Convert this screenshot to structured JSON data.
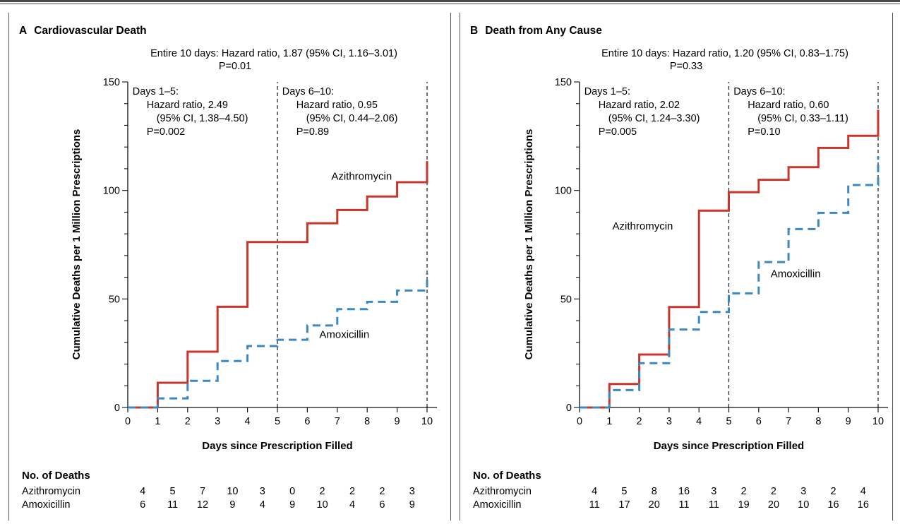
{
  "style": {
    "azithro_color": "#c8362b",
    "amox_color": "#3b88c4",
    "axis_color": "#111111"
  },
  "chart_data": [
    {
      "type": "line",
      "panel": "A",
      "title": "Cardiovascular Death",
      "overall_lines": [
        "Entire 10 days: Hazard ratio, 1.87 (95% CI, 1.16–3.01)",
        "P=0.01"
      ],
      "xlabel": "Days since Prescription Filled",
      "ylabel": "Cumulative Deaths per 1 Million Prescriptions",
      "xlim": [
        0,
        10
      ],
      "ylim": [
        0,
        150
      ],
      "xticks": [
        "0",
        "1",
        "2",
        "3",
        "4",
        "5",
        "6",
        "7",
        "8",
        "9",
        "10"
      ],
      "yticks": [
        "0",
        "50",
        "100",
        "150"
      ],
      "vlines": [
        5,
        10
      ],
      "annotations": [
        {
          "x": 0.3,
          "lines": [
            "Days 1–5:",
            "Hazard ratio, 2.49",
            "(95% CI, 1.38–4.50)",
            "P=0.002"
          ]
        },
        {
          "x": 5.3,
          "lines": [
            "Days 6–10:",
            "Hazard ratio, 0.95",
            "(95% CI, 0.44–2.06)",
            "P=0.89"
          ]
        }
      ],
      "series": [
        {
          "name": "Azithromycin",
          "style": "solid",
          "x": [
            0,
            1,
            2,
            3,
            4,
            5,
            6,
            7,
            8,
            9,
            10
          ],
          "y": [
            0,
            11.4,
            25.7,
            46.4,
            76.2,
            76.2,
            84.9,
            91.0,
            97.2,
            103.8,
            113.5
          ],
          "label_at": [
            6.8,
            105
          ]
        },
        {
          "name": "Amoxicillin",
          "style": "dashed",
          "x": [
            0,
            1,
            2,
            3,
            4,
            5,
            6,
            7,
            8,
            9,
            10
          ],
          "y": [
            0,
            4.2,
            12.3,
            21.4,
            28.3,
            31.2,
            37.8,
            45.3,
            48.7,
            53.9,
            61.8
          ],
          "label_at": [
            6.4,
            32
          ]
        }
      ],
      "deaths_table": {
        "header": "No. of Deaths",
        "rows": [
          {
            "name": "Azithromycin",
            "values": [
              "4",
              "5",
              "7",
              "10",
              "3",
              "0",
              "2",
              "2",
              "2",
              "3"
            ]
          },
          {
            "name": "Amoxicillin",
            "values": [
              "6",
              "11",
              "12",
              "9",
              "4",
              "9",
              "10",
              "4",
              "6",
              "9"
            ]
          }
        ]
      }
    },
    {
      "type": "line",
      "panel": "B",
      "title": "Death from Any Cause",
      "overall_lines": [
        "Entire 10 days: Hazard ratio, 1.20 (95% CI, 0.83–1.75)",
        "P=0.33"
      ],
      "xlabel": "Days since Prescription Filled",
      "ylabel": "Cumulative Deaths per 1 Million Prescriptions",
      "xlim": [
        0,
        10
      ],
      "ylim": [
        0,
        150
      ],
      "xticks": [
        "0",
        "1",
        "2",
        "3",
        "4",
        "5",
        "6",
        "7",
        "8",
        "9",
        "10"
      ],
      "yticks": [
        "0",
        "50",
        "100",
        "150"
      ],
      "vlines": [
        5,
        10
      ],
      "annotations": [
        {
          "x": 0.3,
          "lines": [
            "Days 1–5:",
            "Hazard ratio, 2.02",
            "(95% CI, 1.24–3.30)",
            "P=0.005"
          ]
        },
        {
          "x": 5.3,
          "lines": [
            "Days 6–10:",
            "Hazard ratio, 0.60",
            "(95% CI, 0.33–1.11)",
            "P=0.10"
          ]
        }
      ],
      "series": [
        {
          "name": "Azithromycin",
          "style": "solid",
          "x": [
            0,
            1,
            2,
            3,
            4,
            5,
            6,
            7,
            8,
            9,
            10
          ],
          "y": [
            0,
            10.8,
            24.4,
            46.3,
            90.7,
            99.2,
            104.9,
            110.7,
            119.6,
            125.2,
            137.2
          ],
          "label_at": [
            1.1,
            82
          ]
        },
        {
          "name": "Amoxicillin",
          "style": "dashed",
          "x": [
            0,
            1,
            2,
            3,
            4,
            5,
            6,
            7,
            8,
            9,
            10
          ],
          "y": [
            0,
            8.0,
            20.4,
            35.9,
            44.0,
            52.6,
            67.0,
            82.2,
            89.7,
            102.5,
            115.7
          ],
          "label_at": [
            6.4,
            60
          ]
        }
      ],
      "deaths_table": {
        "header": "No. of Deaths",
        "rows": [
          {
            "name": "Azithromycin",
            "values": [
              "4",
              "5",
              "8",
              "16",
              "3",
              "2",
              "2",
              "3",
              "2",
              "4"
            ]
          },
          {
            "name": "Amoxicillin",
            "values": [
              "11",
              "17",
              "20",
              "11",
              "11",
              "19",
              "20",
              "10",
              "16",
              "16"
            ]
          }
        ]
      }
    }
  ]
}
